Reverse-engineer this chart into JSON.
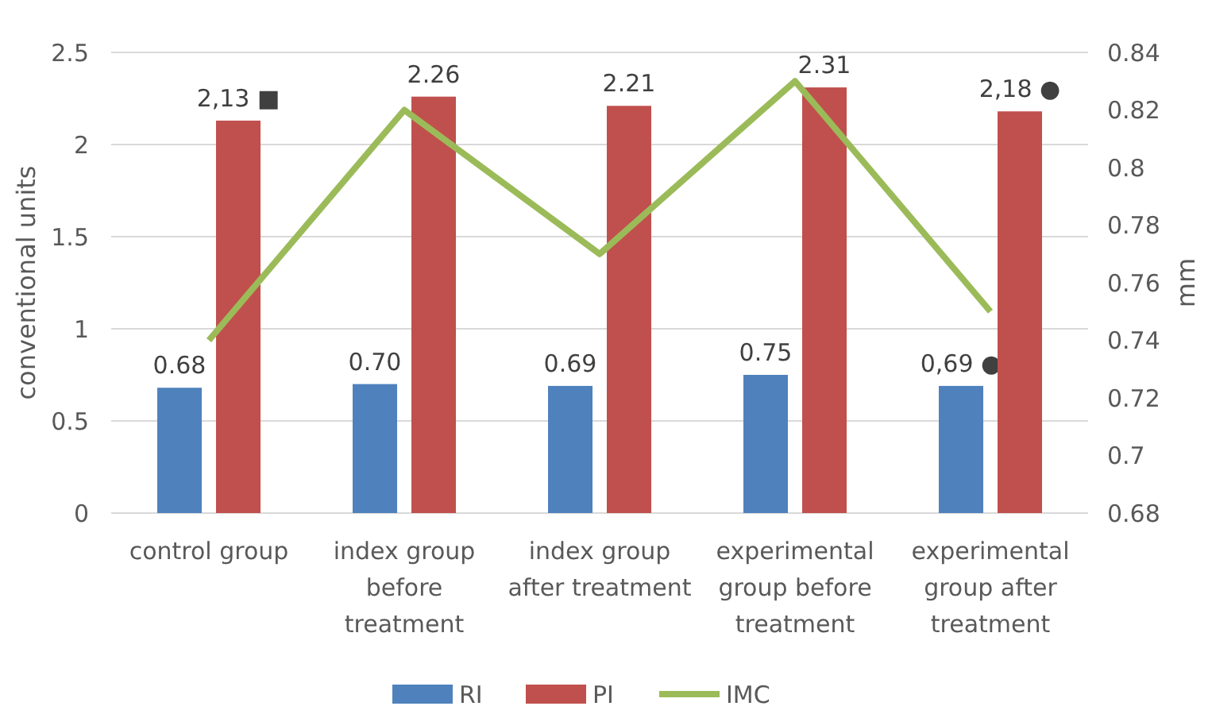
{
  "chart_data": {
    "type": "bar",
    "ylabel": "conventional units",
    "y2label": "mm",
    "categories": [
      "control group",
      "index group before treatment",
      "index group after treatment",
      "experimental group before treatment",
      "experimental group after treatment"
    ],
    "series": [
      {
        "name": "RI",
        "color": "#4f81bd",
        "values": [
          0.68,
          0.7,
          0.69,
          0.75,
          0.69
        ],
        "value_labels": [
          "0.68",
          "0.70",
          "0.69",
          "0.75",
          "0,69 ●"
        ]
      },
      {
        "name": "PI",
        "color": "#c0504d",
        "values": [
          2.13,
          2.26,
          2.21,
          2.31,
          2.18
        ],
        "value_labels": [
          "2,13 ■",
          "2.26",
          "2.21",
          "2.31",
          "2,18 ●"
        ]
      },
      {
        "name": "IMC",
        "type": "line",
        "axis": "y2",
        "color": "#9bbb59",
        "values": [
          0.74,
          0.82,
          0.77,
          0.83,
          0.75
        ]
      }
    ],
    "ylim": [
      0,
      2.5
    ],
    "yticks": [
      0,
      0.5,
      1,
      1.5,
      2,
      2.5
    ],
    "y2lim": [
      0.68,
      0.84
    ],
    "y2ticks": [
      0.68,
      0.7,
      0.72,
      0.74,
      0.76,
      0.78,
      0.8,
      0.82,
      0.84
    ],
    "grid": "y",
    "legend": "bottom"
  }
}
